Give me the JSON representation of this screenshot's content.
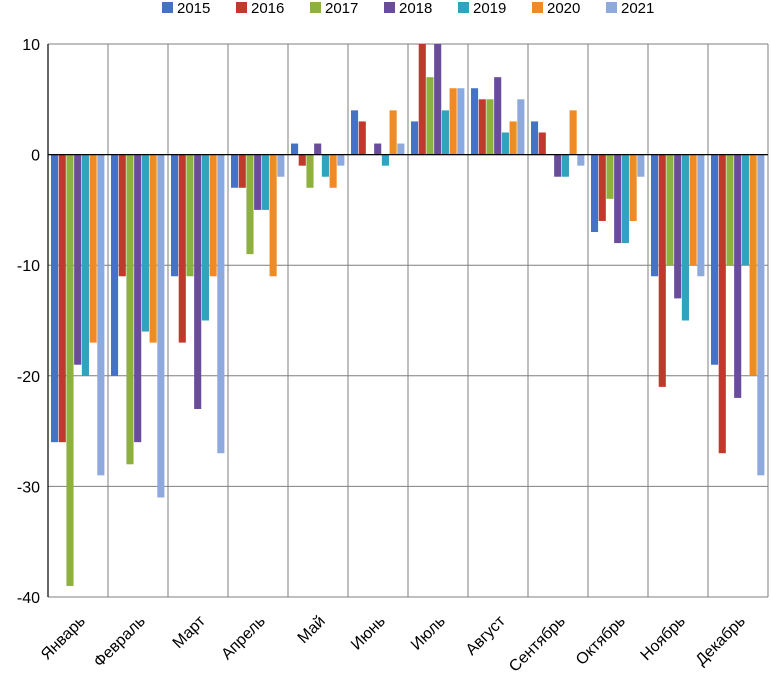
{
  "chart_data": {
    "type": "bar",
    "title": "",
    "xlabel": "",
    "ylabel": "",
    "ylim": [
      -40,
      10
    ],
    "yticks": [
      -40,
      -30,
      -20,
      -10,
      0,
      10
    ],
    "grid": true,
    "legend_position": "top",
    "categories": [
      "Январь",
      "Февраль",
      "Март",
      "Апрель",
      "Май",
      "Июнь",
      "Июль",
      "Август",
      "Сентябрь",
      "Октябрь",
      "Ноябрь",
      "Декабрь"
    ],
    "series": [
      {
        "name": "2015",
        "color": "#4472C4",
        "values": [
          -26,
          -20,
          -11,
          -3,
          1,
          4,
          3,
          6,
          3,
          -7,
          -11,
          -19
        ]
      },
      {
        "name": "2016",
        "color": "#C0392B",
        "values": [
          -26,
          -11,
          -17,
          -3,
          -1,
          3,
          10,
          5,
          2,
          -6,
          -21,
          -27
        ]
      },
      {
        "name": "2017",
        "color": "#8DB03F",
        "values": [
          -39,
          -28,
          -11,
          -9,
          -3,
          0,
          7,
          5,
          0,
          -4,
          -10,
          -10
        ]
      },
      {
        "name": "2018",
        "color": "#6A4C9C",
        "values": [
          -19,
          -26,
          -23,
          -5,
          1,
          1,
          10,
          7,
          -2,
          -8,
          -13,
          -22
        ]
      },
      {
        "name": "2019",
        "color": "#31A2BF",
        "values": [
          -20,
          -16,
          -15,
          -5,
          -2,
          -1,
          4,
          2,
          -2,
          -8,
          -15,
          -10
        ]
      },
      {
        "name": "2020",
        "color": "#F08A24",
        "values": [
          -17,
          -17,
          -11,
          -11,
          -3,
          4,
          6,
          3,
          4,
          -6,
          -10,
          -20
        ]
      },
      {
        "name": "2021",
        "color": "#8EA9DB",
        "values": [
          -29,
          -31,
          -27,
          -2,
          -1,
          1,
          6,
          5,
          -1,
          -2,
          -11,
          -29
        ]
      }
    ]
  }
}
